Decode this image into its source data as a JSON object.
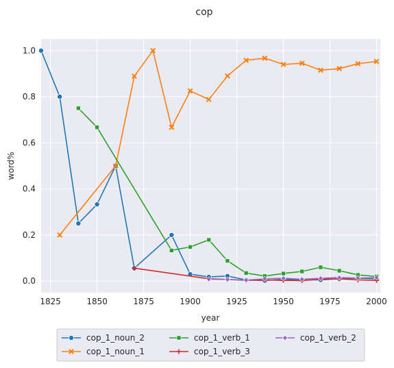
{
  "chart_data": {
    "type": "line",
    "title": "cop",
    "xlabel": "year",
    "ylabel": "word%",
    "xlim": [
      1820,
      2002
    ],
    "ylim": [
      -0.05,
      1.05
    ],
    "xticks": [
      1825,
      1850,
      1875,
      1900,
      1925,
      1950,
      1975,
      2000
    ],
    "yticks": [
      0.0,
      0.2,
      0.4,
      0.6,
      0.8,
      1.0
    ],
    "xtick_labels": [
      "1825",
      "1850",
      "1875",
      "1900",
      "1925",
      "1950",
      "1975",
      "2000"
    ],
    "ytick_labels": [
      "0.0",
      "0.2",
      "0.4",
      "0.6",
      "0.8",
      "1.0"
    ],
    "grid": true,
    "legend_position": "bottom-center",
    "series": [
      {
        "name": "cop_1_noun_2",
        "color": "#1f77b4",
        "marker": "circle",
        "x": [
          1820,
          1830,
          1840,
          1850,
          1860,
          1870,
          1890,
          1900,
          1910,
          1920,
          1930,
          1940,
          1950,
          1960,
          1970,
          1980,
          1990,
          2000
        ],
        "y": [
          1.0,
          0.8,
          0.25,
          0.333,
          0.5,
          0.056,
          0.2,
          0.03,
          0.018,
          0.022,
          0.005,
          0.002,
          0.008,
          0.005,
          0.005,
          0.01,
          0.012,
          0.01
        ]
      },
      {
        "name": "cop_1_noun_1",
        "color": "#ff7f0e",
        "marker": "x",
        "x": [
          1830,
          1860,
          1870,
          1880,
          1890,
          1900,
          1910,
          1920,
          1930,
          1940,
          1950,
          1960,
          1970,
          1980,
          1990,
          2000
        ],
        "y": [
          0.2,
          0.5,
          0.889,
          1.0,
          0.667,
          0.825,
          0.788,
          0.89,
          0.958,
          0.967,
          0.94,
          0.945,
          0.915,
          0.922,
          0.943,
          0.953
        ]
      },
      {
        "name": "cop_1_verb_1",
        "color": "#2ca02c",
        "marker": "square",
        "x": [
          1840,
          1850,
          1890,
          1900,
          1910,
          1920,
          1930,
          1940,
          1950,
          1960,
          1970,
          1980,
          1990,
          2000
        ],
        "y": [
          0.75,
          0.667,
          0.133,
          0.148,
          0.179,
          0.088,
          0.035,
          0.022,
          0.033,
          0.042,
          0.06,
          0.045,
          0.027,
          0.02
        ]
      },
      {
        "name": "cop_1_verb_3",
        "color": "#d62728",
        "marker": "plus",
        "x": [
          1870,
          1910,
          1920,
          1930,
          1940,
          1950,
          1960,
          1970,
          1980,
          1990,
          2000
        ],
        "y": [
          0.056,
          0.01,
          0.007,
          0.003,
          0.005,
          0.003,
          0.002,
          0.008,
          0.01,
          0.005,
          0.003
        ]
      },
      {
        "name": "cop_1_verb_2",
        "color": "#9467bd",
        "marker": "diamond",
        "x": [
          1910,
          1920,
          1930,
          1940,
          1950,
          1960,
          1970,
          1980,
          1990,
          2000
        ],
        "y": [
          0.008,
          0.007,
          0.004,
          0.01,
          0.012,
          0.008,
          0.012,
          0.015,
          0.013,
          0.015
        ]
      }
    ],
    "legend_order": [
      "cop_1_noun_2",
      "cop_1_noun_1",
      "cop_1_verb_1",
      "cop_1_verb_3",
      "cop_1_verb_2"
    ]
  }
}
